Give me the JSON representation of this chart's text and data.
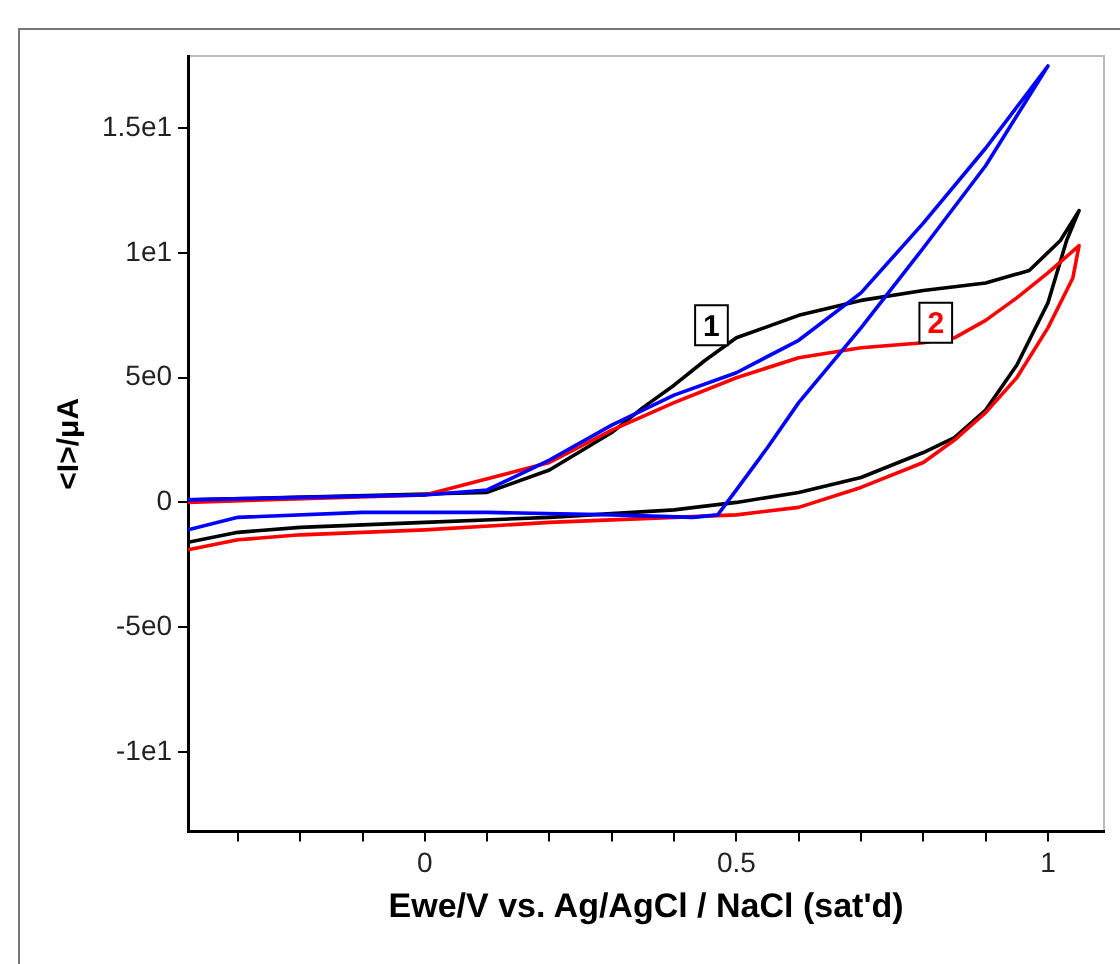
{
  "chart_data": {
    "type": "line",
    "xlabel": "Ewe/V vs. Ag/AgCl / NaCl (sat'd)",
    "ylabel": "<I>/μA",
    "xlim": [
      -0.38,
      1.09
    ],
    "ylim": [
      -13.2,
      17.9
    ],
    "xticks": [
      {
        "value": -0.3,
        "label": null
      },
      {
        "value": -0.2,
        "label": null
      },
      {
        "value": -0.1,
        "label": null
      },
      0,
      {
        "value": 0.1,
        "label": null
      },
      {
        "value": 0.2,
        "label": null
      },
      {
        "value": 0.3,
        "label": null
      },
      {
        "value": 0.4,
        "label": null
      },
      0.5,
      {
        "value": 0.6,
        "label": null
      },
      {
        "value": 0.7,
        "label": null
      },
      {
        "value": 0.8,
        "label": null
      },
      {
        "value": 0.9,
        "label": null
      },
      1
    ],
    "yticks": [
      {
        "value": -10,
        "label": "-1e1"
      },
      {
        "value": -5,
        "label": "-5e0"
      },
      0,
      {
        "value": 5,
        "label": "5e0"
      },
      {
        "value": 10,
        "label": "1e1"
      },
      {
        "value": 15,
        "label": "1.5e1"
      }
    ],
    "grid": false,
    "legend": false,
    "marker": "none",
    "series": [
      {
        "color": "#0000ff",
        "x": [
          -0.38,
          -0.2,
          0,
          0.1,
          0.2,
          0.3,
          0.4,
          0.5,
          0.6,
          0.7,
          0.8,
          0.9,
          1.0,
          0.9,
          0.8,
          0.7,
          0.6,
          0.55,
          0.5,
          0.47,
          0.43,
          0.3,
          0.1,
          -0.1,
          -0.3,
          -0.38
        ],
        "values": [
          0.1,
          0.2,
          0.3,
          0.5,
          1.7,
          3.1,
          4.3,
          5.2,
          6.5,
          8.4,
          11.2,
          14.2,
          17.5,
          13.5,
          10.2,
          7.0,
          4.0,
          2.2,
          0.5,
          -0.5,
          -0.6,
          -0.5,
          -0.4,
          -0.4,
          -0.6,
          -1.1
        ]
      },
      {
        "color": "#ff0000",
        "x": [
          -0.38,
          -0.2,
          0,
          0.1,
          0.2,
          0.3,
          0.4,
          0.5,
          0.6,
          0.7,
          0.8,
          0.85,
          0.9,
          0.95,
          1.0,
          1.05,
          1.04,
          1.0,
          0.95,
          0.9,
          0.85,
          0.8,
          0.7,
          0.6,
          0.5,
          0.4,
          0.2,
          0,
          -0.2,
          -0.3,
          -0.38
        ],
        "values": [
          0,
          null,
          0.3,
          null,
          1.6,
          2.9,
          4.0,
          5.0,
          5.8,
          6.2,
          6.4,
          6.6,
          7.3,
          8.2,
          9.2,
          10.3,
          9,
          7,
          5,
          3.6,
          2.5,
          1.6,
          0.6,
          -0.2,
          -0.5,
          -0.6,
          -0.8,
          -1.1,
          -1.3,
          -1.5,
          -1.9
        ]
      },
      {
        "color": "#000000",
        "x": [
          -0.38,
          -0.2,
          0,
          0.1,
          0.2,
          0.3,
          0.35,
          0.4,
          0.45,
          0.5,
          0.6,
          0.7,
          0.8,
          0.9,
          0.97,
          1.02,
          1.05,
          1.03,
          1.0,
          0.95,
          0.9,
          0.85,
          0.8,
          0.7,
          0.6,
          0.5,
          0.4,
          0.2,
          0,
          -0.2,
          -0.3,
          -0.38
        ],
        "values": [
          0.1,
          null,
          null,
          0.4,
          1.3,
          2.8,
          3.8,
          4.7,
          5.7,
          6.6,
          7.5,
          8.1,
          8.5,
          8.8,
          9.3,
          10.5,
          11.7,
          10.5,
          8,
          5.5,
          3.7,
          2.6,
          2,
          1,
          0.4,
          0,
          -0.3,
          -0.6,
          -0.8,
          -1.0,
          -1.2,
          -1.6
        ]
      }
    ],
    "annotations": [
      {
        "text": "1",
        "x": 0.46,
        "y": 7.1
      },
      {
        "text": "2",
        "x": 0.82,
        "y": 7.2
      }
    ]
  }
}
